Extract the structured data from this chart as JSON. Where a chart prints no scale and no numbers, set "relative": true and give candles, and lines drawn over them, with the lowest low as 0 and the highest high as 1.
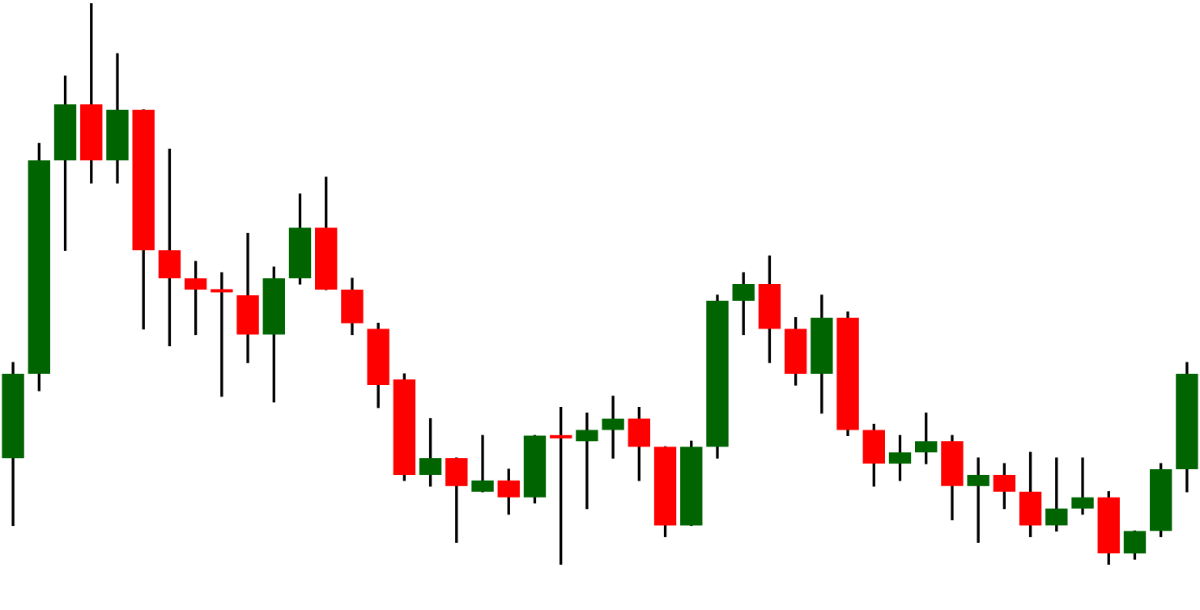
{
  "chart_data": {
    "type": "candlestick",
    "relative": true,
    "categories": [
      null,
      null,
      null,
      null,
      null,
      null,
      null,
      null,
      null,
      null,
      null,
      null,
      null,
      null,
      null,
      null,
      null,
      null,
      null,
      null,
      null,
      null,
      null,
      null,
      null,
      null,
      null,
      null,
      null,
      null,
      null,
      null,
      null,
      null,
      null,
      null,
      null,
      null,
      null,
      null,
      null,
      null,
      null,
      null,
      null,
      null
    ],
    "ohlc": [
      [
        0.19,
        0.36,
        0.07,
        0.34
      ],
      [
        0.34,
        0.75,
        0.31,
        0.72
      ],
      [
        0.72,
        0.87,
        0.56,
        0.82
      ],
      [
        0.82,
        1,
        0.68,
        0.72
      ],
      [
        0.72,
        0.91,
        0.68,
        0.81
      ],
      [
        0.81,
        0.81,
        0.42,
        0.56
      ],
      [
        0.56,
        0.74,
        0.39,
        0.51
      ],
      [
        0.51,
        0.54,
        0.41,
        0.49
      ],
      [
        0.49,
        0.52,
        0.3,
        0.485
      ],
      [
        0.48,
        0.59,
        0.36,
        0.41
      ],
      [
        0.41,
        0.53,
        0.29,
        0.51
      ],
      [
        0.51,
        0.66,
        0.5,
        0.6
      ],
      [
        0.6,
        0.69,
        0.49,
        0.49
      ],
      [
        0.49,
        0.51,
        0.41,
        0.43
      ],
      [
        0.42,
        0.43,
        0.28,
        0.32
      ],
      [
        0.33,
        0.34,
        0.15,
        0.16
      ],
      [
        0.16,
        0.26,
        0.14,
        0.19
      ],
      [
        0.19,
        0.19,
        0.04,
        0.14
      ],
      [
        0.13,
        0.23,
        0.13,
        0.15
      ],
      [
        0.15,
        0.17,
        0.09,
        0.12
      ],
      [
        0.12,
        0.23,
        0.11,
        0.23
      ],
      [
        0.23,
        0.28,
        0,
        0.225
      ],
      [
        0.22,
        0.27,
        0.1,
        0.24
      ],
      [
        0.24,
        0.3,
        0.19,
        0.26
      ],
      [
        0.26,
        0.28,
        0.15,
        0.21
      ],
      [
        0.21,
        0.21,
        0.05,
        0.07
      ],
      [
        0.07,
        0.22,
        0.07,
        0.21
      ],
      [
        0.21,
        0.48,
        0.19,
        0.47
      ],
      [
        0.47,
        0.52,
        0.41,
        0.5
      ],
      [
        0.5,
        0.55,
        0.36,
        0.42
      ],
      [
        0.42,
        0.44,
        0.32,
        0.34
      ],
      [
        0.34,
        0.48,
        0.27,
        0.44
      ],
      [
        0.44,
        0.45,
        0.23,
        0.24
      ],
      [
        0.24,
        0.25,
        0.14,
        0.18
      ],
      [
        0.18,
        0.23,
        0.15,
        0.2
      ],
      [
        0.2,
        0.27,
        0.18,
        0.22
      ],
      [
        0.22,
        0.23,
        0.08,
        0.14
      ],
      [
        0.14,
        0.19,
        0.04,
        0.16
      ],
      [
        0.16,
        0.18,
        0.1,
        0.13
      ],
      [
        0.13,
        0.2,
        0.05,
        0.07
      ],
      [
        0.07,
        0.19,
        0.06,
        0.1
      ],
      [
        0.1,
        0.19,
        0.09,
        0.12
      ],
      [
        0.12,
        0.13,
        0,
        0.02
      ],
      [
        0.02,
        0.06,
        0.01,
        0.06
      ],
      [
        0.06,
        0.18,
        0.05,
        0.17
      ],
      [
        0.17,
        0.36,
        0.13,
        0.34
      ]
    ],
    "colors": [
      "#006400",
      "#006400",
      "#006400",
      "#ff0000",
      "#006400",
      "#ff0000",
      "#ff0000",
      "#ff0000",
      "#ff0000",
      "#ff0000",
      "#006400",
      "#006400",
      "#ff0000",
      "#ff0000",
      "#ff0000",
      "#ff0000",
      "#006400",
      "#ff0000",
      "#006400",
      "#ff0000",
      "#006400",
      "#ff0000",
      "#006400",
      "#006400",
      "#ff0000",
      "#ff0000",
      "#006400",
      "#006400",
      "#006400",
      "#ff0000",
      "#ff0000",
      "#006400",
      "#ff0000",
      "#ff0000",
      "#006400",
      "#006400",
      "#ff0000",
      "#006400",
      "#ff0000",
      "#ff0000",
      "#006400",
      "#006400",
      "#ff0000",
      "#006400",
      "#006400",
      "#006400"
    ]
  }
}
